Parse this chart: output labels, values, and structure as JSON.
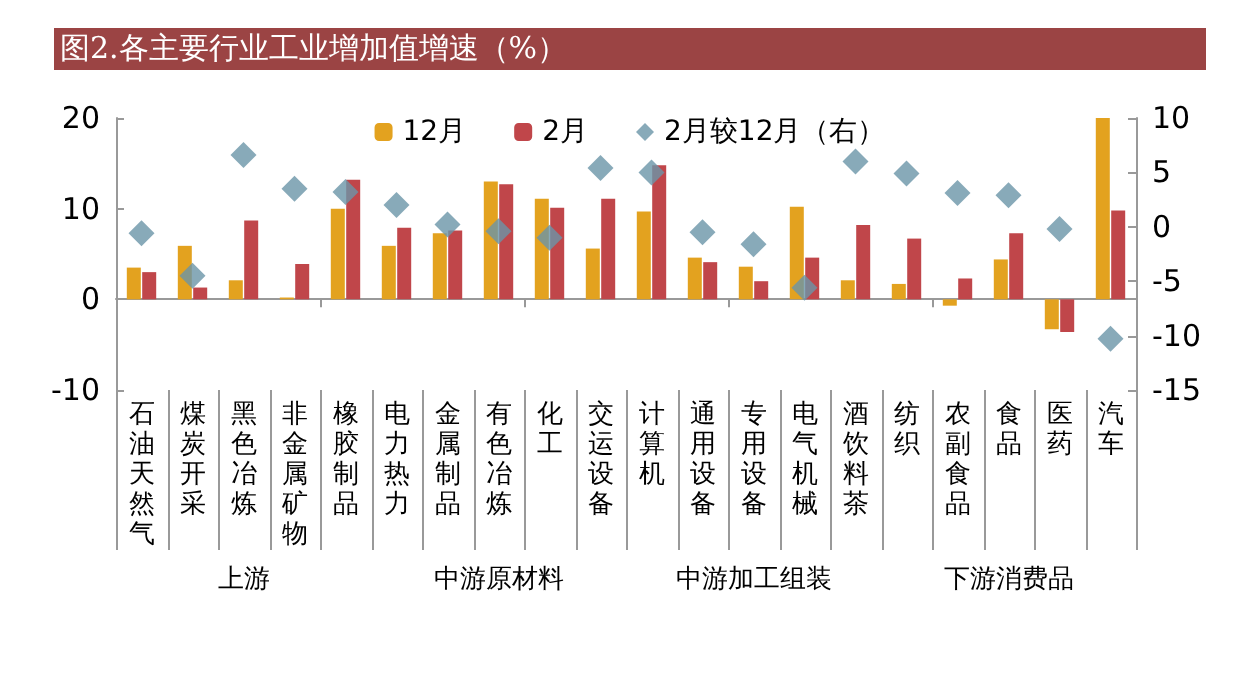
{
  "chart_data": {
    "type": "bar",
    "title": "图2.各主要行业工业增加值增速（%）",
    "categories": [
      "石油天然气",
      "煤炭开采",
      "黑色冶炼",
      "非金属矿物",
      "橡胶制品",
      "电力热力",
      "金属制品",
      "有色冶炼",
      "化工",
      "交运设备",
      "计算机",
      "通用设备",
      "专用设备",
      "电气机械",
      "酒饮料茶",
      "纺织",
      "农副食品",
      "食品",
      "医药",
      "汽车"
    ],
    "series": [
      {
        "name": "12月",
        "color": "#e3a21f",
        "values": [
          3.5,
          5.9,
          2.1,
          0.2,
          10.0,
          5.9,
          7.3,
          13.0,
          11.1,
          5.6,
          9.7,
          4.6,
          3.6,
          10.2,
          2.1,
          1.7,
          -0.7,
          4.4,
          -3.3,
          20.0
        ]
      },
      {
        "name": "2月",
        "color": "#c0464a",
        "values": [
          3.0,
          1.3,
          8.7,
          3.9,
          13.2,
          7.9,
          7.6,
          12.7,
          10.1,
          11.1,
          14.8,
          4.1,
          2.0,
          4.6,
          8.2,
          6.7,
          2.3,
          7.3,
          -3.6,
          9.8
        ]
      },
      {
        "name": "2月较12月（右）",
        "type": "scatter",
        "axis": "y2",
        "marker": "diamond",
        "color": "#6a95a8",
        "values": [
          -0.6,
          -4.5,
          6.6,
          3.5,
          3.2,
          2.0,
          0.2,
          -0.4,
          -1.0,
          5.4,
          5.0,
          -0.5,
          -1.6,
          -5.6,
          6.0,
          4.9,
          3.1,
          2.9,
          -0.2,
          -10.3
        ]
      }
    ],
    "ylim": [
      -10,
      20
    ],
    "yticks": [
      -10,
      0,
      10,
      20
    ],
    "y2lim": [
      -15,
      10
    ],
    "y2ticks": [
      -15,
      -10,
      -5,
      0,
      5,
      10
    ],
    "legend": "top",
    "annotations": [
      "上游",
      "中游原材料",
      "中游加工组装",
      "下游消费品"
    ]
  }
}
